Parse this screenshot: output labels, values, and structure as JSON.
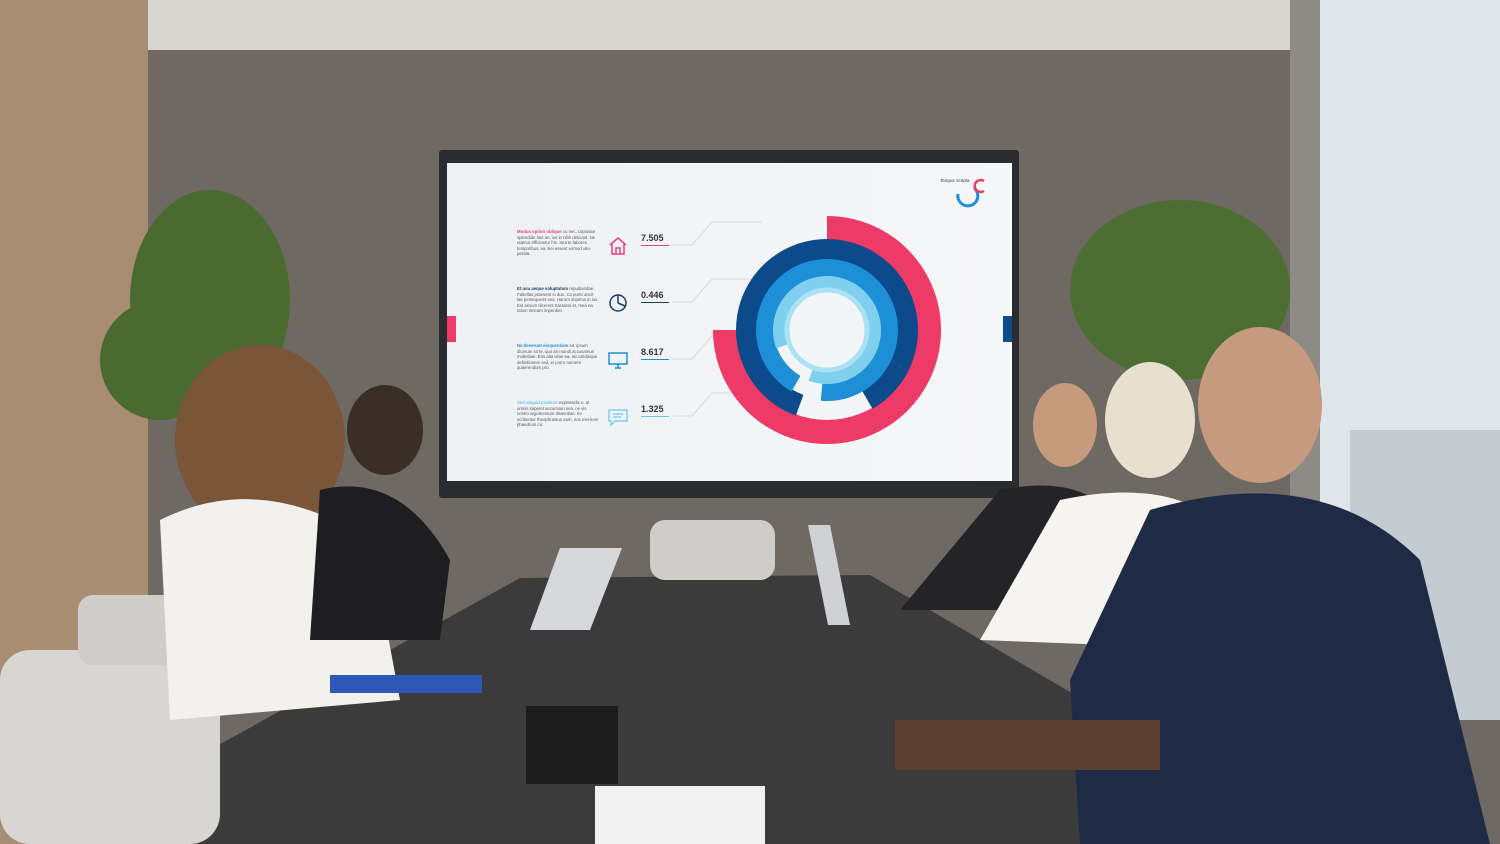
{
  "screen": {
    "brand": "Tempor scripta",
    "colors": {
      "pink": "#ee3a66",
      "navy": "#0c4a8c",
      "blue": "#1c8fd6",
      "light_blue": "#7fd0ee",
      "sky": "#a9e2f5"
    },
    "rows": [
      {
        "title": "Modus option oblique",
        "body": "cu nec, copiosae splendide has an, ius in nibh delicant. Ne utamur efficiantur his. Sea te labores temporibus, ea mei essent eirmod vitu-perata.",
        "value": "7.505",
        "icon": "house-icon",
        "color": "#e0457a"
      },
      {
        "title": "Et usu aeque voluptatum",
        "body": "repudiandae. Fabellas praesent ei duo. Cu purto ancil-lae persequeris sea. Harum impetus in ius. Est assum dicerent tractatos et, mea ea tation timeam imperdiet.",
        "value": "0.446",
        "icon": "pie-chart-icon",
        "color": "#1c3d66"
      },
      {
        "title": "Ne deserunt eloquentiam",
        "body": "sit, ipsum dicerum sit te, quo an mundi accusamus molestiae. Eos alia vitae ea, ad cotidieque definitionem sed, ei porro numere quaerendum pro.",
        "value": "8.617",
        "icon": "monitor-icon",
        "color": "#1c8fd6"
      },
      {
        "title": "Sed aliquid invidunt",
        "body": "expetendis n, ut omnis saperet accumsan sea, ne vis nostro argumentum dissentias. Ex scribentur theophrastus eam, eos mei-liore phaedrum cu.",
        "value": "1.325",
        "icon": "chat-icon",
        "color": "#6cc6ea"
      }
    ]
  }
}
